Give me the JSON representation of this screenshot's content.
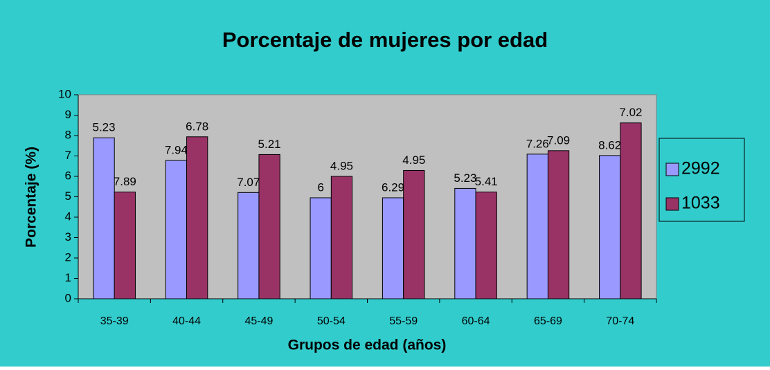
{
  "chart_data": {
    "type": "bar",
    "title": "Porcentaje de mujeres por edad",
    "x_label": "Grupos de edad (años)",
    "y_label": "Porcentaje (%)",
    "categories": [
      "35-39",
      "40-44",
      "45-49",
      "50-54",
      "55-59",
      "60-64",
      "65-69",
      "70-74"
    ],
    "series": [
      {
        "name": "2992",
        "color": "#9999ff",
        "values": [
          7.89,
          6.78,
          5.21,
          4.95,
          4.95,
          5.41,
          7.09,
          7.02
        ]
      },
      {
        "name": "1033",
        "color": "#993366",
        "values": [
          5.23,
          7.94,
          7.07,
          6,
          6.29,
          5.23,
          7.26,
          8.62
        ]
      }
    ],
    "ylim": [
      0,
      10
    ],
    "yticks": [
      0,
      1,
      2,
      3,
      4,
      5,
      6,
      7,
      8,
      9,
      10
    ],
    "legend": "right"
  }
}
